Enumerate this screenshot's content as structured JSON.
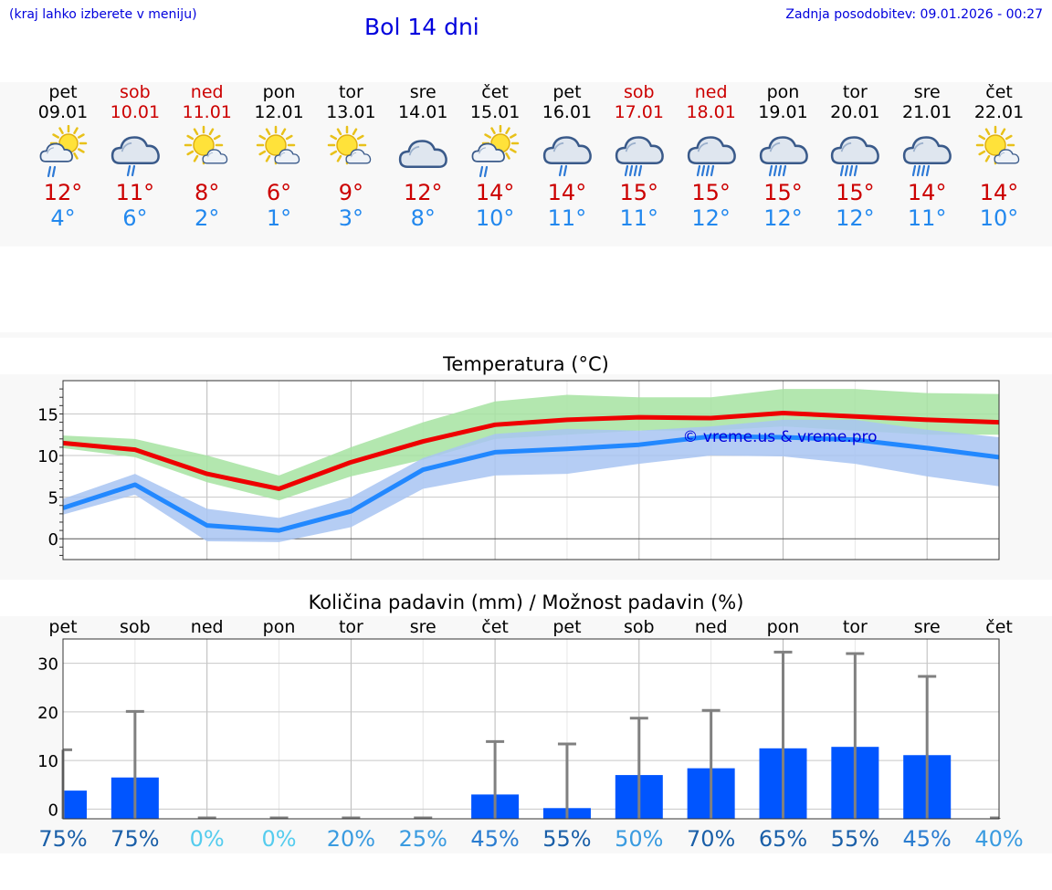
{
  "header": {
    "hint": "(kraj lahko izberete v meniju)",
    "title": "Bol 14 dni",
    "updated": "Zadnja posodobitev: 09.01.2026 - 00:27"
  },
  "days": [
    {
      "name": "pet",
      "date": "09.01",
      "max": "12°",
      "min": "4°",
      "icon": "sun-cloud-showers-icon",
      "weekend": false
    },
    {
      "name": "sob",
      "date": "10.01",
      "max": "11°",
      "min": "6°",
      "icon": "cloud-showers-icon",
      "weekend": true
    },
    {
      "name": "ned",
      "date": "11.01",
      "max": "8°",
      "min": "2°",
      "icon": "sun-cloud-icon",
      "weekend": true
    },
    {
      "name": "pon",
      "date": "12.01",
      "max": "6°",
      "min": "1°",
      "icon": "sun-cloud-icon",
      "weekend": false
    },
    {
      "name": "tor",
      "date": "13.01",
      "max": "9°",
      "min": "3°",
      "icon": "sun-cloud-icon",
      "weekend": false
    },
    {
      "name": "sre",
      "date": "14.01",
      "max": "12°",
      "min": "8°",
      "icon": "cloudy-icon",
      "weekend": false
    },
    {
      "name": "čet",
      "date": "15.01",
      "max": "14°",
      "min": "10°",
      "icon": "sun-cloud-showers-icon",
      "weekend": false
    },
    {
      "name": "pet",
      "date": "16.01",
      "max": "14°",
      "min": "11°",
      "icon": "cloud-showers-icon",
      "weekend": false
    },
    {
      "name": "sob",
      "date": "17.01",
      "max": "15°",
      "min": "11°",
      "icon": "cloud-rain-icon",
      "weekend": true
    },
    {
      "name": "ned",
      "date": "18.01",
      "max": "15°",
      "min": "12°",
      "icon": "cloud-rain-icon",
      "weekend": true
    },
    {
      "name": "pon",
      "date": "19.01",
      "max": "15°",
      "min": "12°",
      "icon": "cloud-rain-icon",
      "weekend": false
    },
    {
      "name": "tor",
      "date": "20.01",
      "max": "15°",
      "min": "12°",
      "icon": "cloud-rain-icon",
      "weekend": false
    },
    {
      "name": "sre",
      "date": "21.01",
      "max": "14°",
      "min": "11°",
      "icon": "cloud-rain-icon",
      "weekend": false
    },
    {
      "name": "čet",
      "date": "22.01",
      "max": "14°",
      "min": "10°",
      "icon": "sun-cloud-icon",
      "weekend": false
    }
  ],
  "colors": {
    "max_line": "#ee0000",
    "min_line": "#2288ff",
    "max_band": "#a6e3a1",
    "min_band": "#a8c4f2",
    "bar": "#0055ff",
    "whisker": "#808080",
    "weekend": "#cc0000",
    "title": "#0000dd"
  },
  "chart_data": [
    {
      "type": "line",
      "title": "Temperatura (°C)",
      "watermark": "© vreme.us & vreme.pro",
      "ylim": [
        -2.5,
        19
      ],
      "yticks": [
        "0",
        "5",
        "10",
        "15"
      ],
      "series": [
        {
          "name": "max",
          "values": [
            11.5,
            10.7,
            7.8,
            6.0,
            9.2,
            11.7,
            13.7,
            14.3,
            14.6,
            14.5,
            15.1,
            14.7,
            14.3,
            14.0
          ]
        },
        {
          "name": "min",
          "values": [
            3.7,
            6.5,
            1.6,
            1.0,
            3.3,
            8.3,
            10.4,
            10.8,
            11.3,
            12.3,
            12.2,
            11.9,
            10.9,
            9.8
          ]
        }
      ],
      "bands": [
        {
          "name": "max_range_low",
          "values": [
            10.9,
            9.8,
            6.8,
            4.6,
            7.5,
            9.5,
            12.0,
            12.5,
            13.0,
            13.0,
            13.5,
            13.0,
            12.5,
            12.5
          ]
        },
        {
          "name": "max_range_high",
          "values": [
            12.4,
            12.0,
            10.0,
            7.6,
            11.0,
            14.0,
            16.5,
            17.3,
            17.0,
            17.0,
            18.0,
            18.0,
            17.5,
            17.4
          ]
        },
        {
          "name": "min_range_low",
          "values": [
            2.9,
            5.3,
            -0.3,
            -0.4,
            1.4,
            6.0,
            7.6,
            7.8,
            9.0,
            10.0,
            9.9,
            9.0,
            7.5,
            6.3
          ]
        },
        {
          "name": "min_range_high",
          "values": [
            4.8,
            7.8,
            3.6,
            2.5,
            5.0,
            9.7,
            12.6,
            13.2,
            13.0,
            13.5,
            14.3,
            14.3,
            13.1,
            12.2
          ]
        }
      ]
    },
    {
      "type": "bar",
      "title": "Količina padavin (mm) / Možnost padavin (%)",
      "ylim": [
        -2,
        35
      ],
      "yticks": [
        "0",
        "10",
        "20",
        "30"
      ],
      "categories": [
        "pet",
        "sob",
        "ned",
        "pon",
        "tor",
        "sre",
        "čet",
        "pet",
        "sob",
        "ned",
        "pon",
        "tor",
        "sre",
        "čet"
      ],
      "values": [
        3.8,
        6.5,
        0,
        0,
        0,
        0,
        3.0,
        0.2,
        7.0,
        8.4,
        12.5,
        12.8,
        11.1,
        0
      ],
      "max_values": [
        12.2,
        20.1,
        0,
        0,
        0,
        0,
        13.9,
        13.4,
        18.7,
        20.3,
        32.3,
        32.0,
        27.3,
        0
      ],
      "probabilities": [
        "75%",
        "75%",
        "0%",
        "0%",
        "20%",
        "25%",
        "45%",
        "55%",
        "50%",
        "70%",
        "65%",
        "55%",
        "45%",
        "40%"
      ],
      "probability_colors": [
        "#1a5fa8",
        "#1a5fa8",
        "#55ccee",
        "#55ccee",
        "#3a9be0",
        "#3a9be0",
        "#2a7cd0",
        "#1a5fa8",
        "#3a9be0",
        "#1a5fa8",
        "#1a5fa8",
        "#1a5fa8",
        "#2a7cd0",
        "#3a9be0"
      ]
    }
  ]
}
